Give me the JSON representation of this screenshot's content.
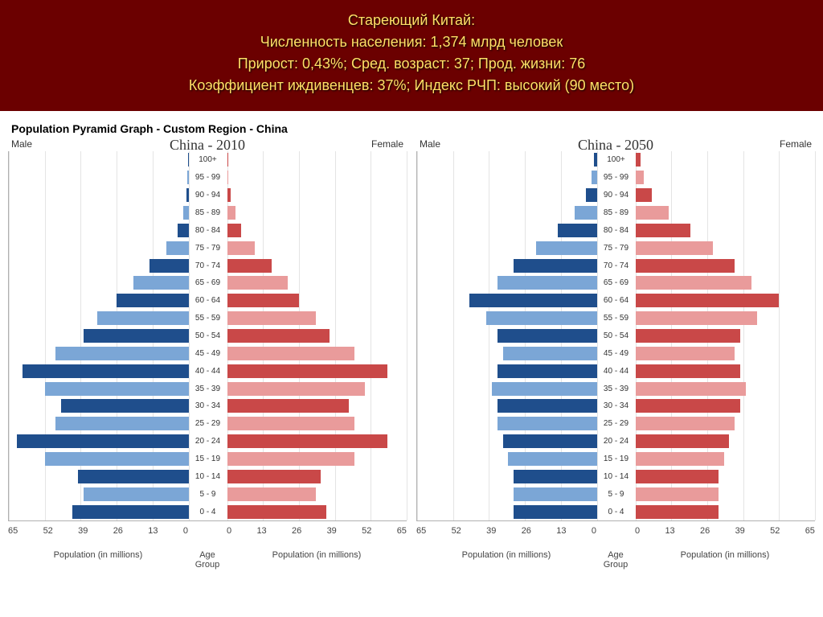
{
  "header": {
    "line1": "Стареющий Китай:",
    "line2": "Численность населения: 1,374 млрд человек",
    "line3": "Прирост: 0,43%; Сред. возраст: 37; Прод. жизни: 76",
    "line4": "Коэффициент иждивенцев: 37%; Индекс РЧП: высокий (90 место)",
    "bg": "#6b0000",
    "fg": "#ffe066"
  },
  "subtitle": "Population Pyramid Graph - Custom Region - China",
  "labels": {
    "male": "Male",
    "female": "Female",
    "pop": "Population (in millions)",
    "age": "Age Group"
  },
  "style": {
    "male_dark": "#1f4e8c",
    "male_light": "#7ba6d6",
    "female_dark": "#c94848",
    "female_light": "#e99b9b",
    "grid_color": "#e4e4e4",
    "border_color": "#b0b0b0",
    "bg": "#ffffff",
    "bar_height_pct": 78,
    "label_fontsize": 10,
    "axis_fontsize": 11,
    "title_fontsize": 18
  },
  "axis": {
    "max": 65,
    "ticks": [
      65,
      52,
      39,
      26,
      13,
      0
    ],
    "ticks_r": [
      0,
      13,
      26,
      39,
      52,
      65
    ]
  },
  "age_groups": [
    "100+",
    "95 - 99",
    "90 - 94",
    "85 - 89",
    "80 - 84",
    "75 - 79",
    "70 - 74",
    "65 - 69",
    "60 - 64",
    "55 - 59",
    "50 - 54",
    "45 - 49",
    "40 - 44",
    "35 - 39",
    "30 - 34",
    "25 - 29",
    "20 - 24",
    "15 - 19",
    "10 - 14",
    "5 - 9",
    "0 - 4"
  ],
  "charts": [
    {
      "title": "China - 2010",
      "male": [
        0.1,
        0.3,
        0.8,
        2,
        4,
        8,
        14,
        20,
        26,
        33,
        38,
        48,
        60,
        52,
        46,
        48,
        62,
        52,
        40,
        38,
        42
      ],
      "female": [
        0.2,
        0.5,
        1.2,
        3,
        5,
        10,
        16,
        22,
        26,
        32,
        37,
        46,
        58,
        50,
        44,
        46,
        58,
        46,
        34,
        32,
        36
      ]
    },
    {
      "title": "China - 2050",
      "male": [
        1,
        2,
        4,
        8,
        14,
        22,
        30,
        36,
        46,
        40,
        36,
        34,
        36,
        38,
        36,
        36,
        34,
        32,
        30,
        30,
        30
      ],
      "female": [
        2,
        3,
        6,
        12,
        20,
        28,
        36,
        42,
        52,
        44,
        38,
        36,
        38,
        40,
        38,
        36,
        34,
        32,
        30,
        30,
        30
      ]
    }
  ]
}
